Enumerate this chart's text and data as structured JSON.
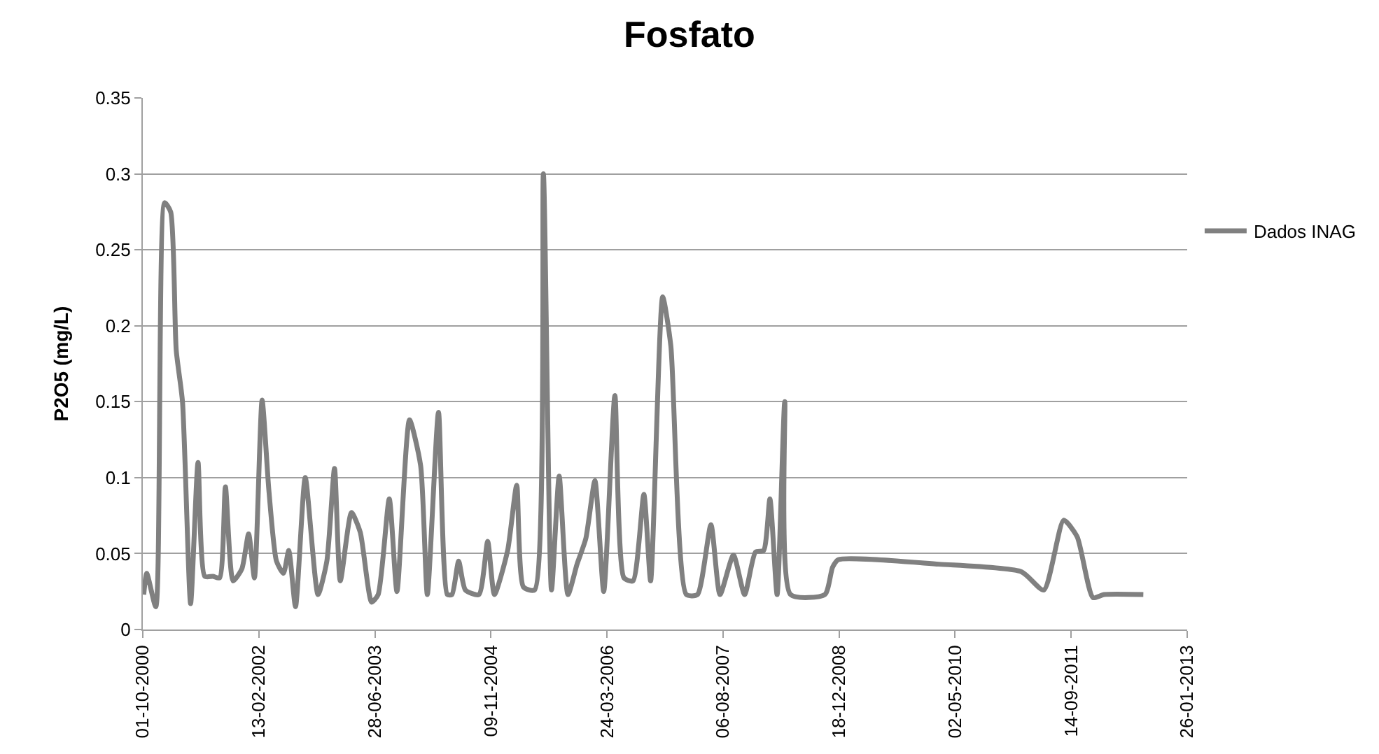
{
  "chart_data": {
    "type": "line",
    "title": "Fosfato",
    "ylabel": "P2O5 (mg/L)",
    "x": [
      "2000-10-05",
      "2000-10-18",
      "2000-11-26",
      "2001-01-03",
      "2001-01-29",
      "2001-02-22",
      "2001-03-21",
      "2001-04-25",
      "2001-05-27",
      "2001-06-25",
      "2001-07-30",
      "2001-08-28",
      "2001-09-22",
      "2001-10-25",
      "2001-12-02",
      "2001-12-31",
      "2002-01-25",
      "2002-02-27",
      "2002-03-28",
      "2002-04-30",
      "2002-05-30",
      "2002-06-22",
      "2002-07-21",
      "2002-09-01",
      "2002-10-26",
      "2002-12-03",
      "2003-01-05",
      "2003-01-30",
      "2003-03-19",
      "2003-04-26",
      "2003-06-14",
      "2003-07-12",
      "2003-08-29",
      "2003-10-01",
      "2003-11-24",
      "2004-01-11",
      "2004-02-09",
      "2004-03-28",
      "2004-05-05",
      "2004-05-25",
      "2004-06-23",
      "2004-07-22",
      "2004-09-18",
      "2004-10-26",
      "2004-11-24",
      "2005-01-20",
      "2005-02-28",
      "2005-03-29",
      "2005-05-16",
      "2005-06-23",
      "2005-07-28",
      "2005-08-30",
      "2005-10-07",
      "2005-11-15",
      "2005-12-23",
      "2006-01-31",
      "2006-03-10",
      "2006-04-27",
      "2006-06-05",
      "2006-07-14",
      "2006-08-30",
      "2006-09-28",
      "2006-11-19",
      "2006-12-24",
      "2007-03-01",
      "2007-04-18",
      "2007-06-15",
      "2007-07-24",
      "2007-09-20",
      "2007-11-07",
      "2007-12-24",
      "2008-01-28",
      "2008-02-24",
      "2008-03-26",
      "2008-04-28",
      "2008-05-23",
      "2008-10-18",
      "2008-11-20",
      "2008-12-15",
      "2010-02-21",
      "2011-02-12",
      "2011-05-19",
      "2011-08-13",
      "2011-10-10",
      "2011-12-17",
      "2012-02-03",
      "2012-07-21"
    ],
    "series": [
      {
        "name": "Dados INAG",
        "color": "#808080",
        "values": [
          0.023,
          0.037,
          0.015,
          0.281,
          0.275,
          0.184,
          0.15,
          0.017,
          0.11,
          0.035,
          0.035,
          0.034,
          0.094,
          0.032,
          0.04,
          0.063,
          0.034,
          0.151,
          0.092,
          0.045,
          0.037,
          0.052,
          0.015,
          0.1,
          0.023,
          0.045,
          0.106,
          0.032,
          0.077,
          0.064,
          0.018,
          0.023,
          0.086,
          0.025,
          0.138,
          0.108,
          0.023,
          0.143,
          0.023,
          0.023,
          0.045,
          0.026,
          0.023,
          0.058,
          0.023,
          0.052,
          0.095,
          0.028,
          0.026,
          0.3,
          0.026,
          0.101,
          0.023,
          0.043,
          0.06,
          0.098,
          0.025,
          0.154,
          0.034,
          0.032,
          0.089,
          0.032,
          0.219,
          0.187,
          0.023,
          0.023,
          0.069,
          0.023,
          0.049,
          0.023,
          0.051,
          0.052,
          0.086,
          0.023,
          0.15,
          0.023,
          0.023,
          0.041,
          0.046,
          0.043,
          0.038,
          0.026,
          0.072,
          0.061,
          0.021,
          0.023,
          0.023
        ]
      }
    ],
    "xlim": [
      "2000-10-01",
      "2013-01-26"
    ],
    "xticks": [
      {
        "value": "2000-10-01",
        "label": "01-10-2000"
      },
      {
        "value": "2002-02-13",
        "label": "13-02-2002"
      },
      {
        "value": "2003-06-28",
        "label": "28-06-2003"
      },
      {
        "value": "2004-11-09",
        "label": "09-11-2004"
      },
      {
        "value": "2006-03-24",
        "label": "24-03-2006"
      },
      {
        "value": "2007-08-06",
        "label": "06-08-2007"
      },
      {
        "value": "2008-12-18",
        "label": "18-12-2008"
      },
      {
        "value": "2010-05-02",
        "label": "02-05-2010"
      },
      {
        "value": "2011-09-14",
        "label": "14-09-2011"
      },
      {
        "value": "2013-01-26",
        "label": "26-01-2013"
      }
    ],
    "ylim": [
      0,
      0.35
    ],
    "yticks": [
      0,
      0.05,
      0.1,
      0.15,
      0.2,
      0.25,
      0.3,
      0.35
    ],
    "grid": "y",
    "legend": "right",
    "marker": "none",
    "line_style": "solid"
  }
}
